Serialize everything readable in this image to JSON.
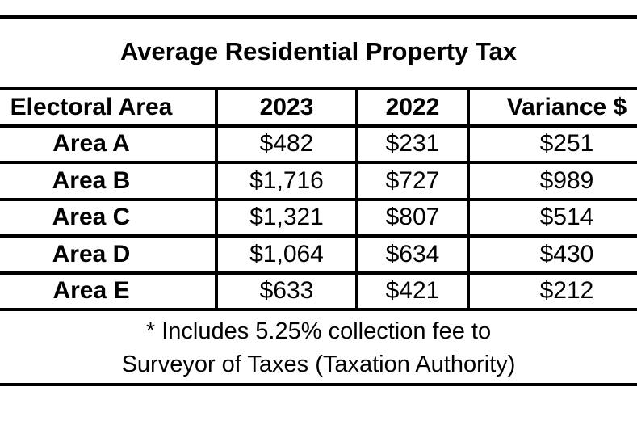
{
  "chart_data": {
    "type": "table",
    "title": "Average Residential Property Tax",
    "columns": [
      "Electoral Area",
      "2023",
      "2022",
      "Variance $"
    ],
    "rows": [
      [
        "Area A",
        "$482",
        "$231",
        "$251"
      ],
      [
        "Area B",
        "$1,716",
        "$727",
        "$989"
      ],
      [
        "Area C",
        "$1,321",
        "$807",
        "$514"
      ],
      [
        "Area D",
        "$1,064",
        "$634",
        "$430"
      ],
      [
        "Area E",
        "$633",
        "$421",
        "$212"
      ]
    ],
    "categories": [
      "Area A",
      "Area B",
      "Area C",
      "Area D",
      "Area E"
    ],
    "series": [
      {
        "name": "2023",
        "values": [
          482,
          1716,
          1321,
          1064,
          633
        ]
      },
      {
        "name": "2022",
        "values": [
          231,
          727,
          807,
          634,
          421
        ]
      },
      {
        "name": "Variance $",
        "values": [
          251,
          989,
          514,
          430,
          212
        ]
      }
    ],
    "footnote_line1": "* Includes 5.25% collection fee to",
    "footnote_line2": "Surveyor of Taxes (Taxation Authority)",
    "text_color": "#000000",
    "background_color": "#ffffff",
    "border_color": "#000000",
    "layout": {
      "grid": "full-black-borders",
      "title_position": "top-center",
      "footnote_position": "bottom-center",
      "left_column_clipped": true,
      "right_column_clipped": true
    }
  }
}
